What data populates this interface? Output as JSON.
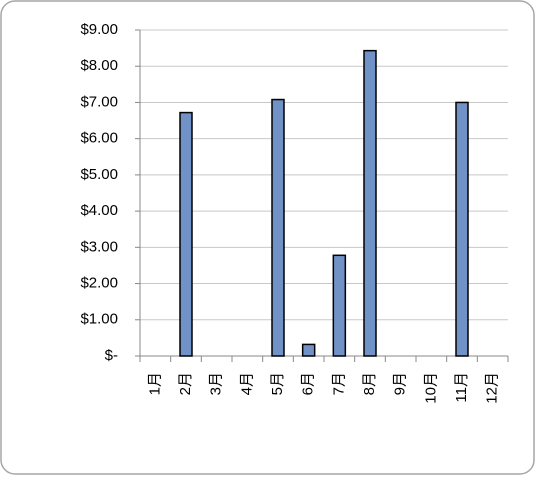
{
  "chart_data": {
    "type": "bar",
    "categories": [
      "1月",
      "2月",
      "3月",
      "4月",
      "5月",
      "6月",
      "7月",
      "8月",
      "9月",
      "10月",
      "11月",
      "12月"
    ],
    "values": [
      0,
      6.72,
      0,
      0,
      7.08,
      0.32,
      2.78,
      8.43,
      0,
      0,
      7.0,
      0
    ],
    "color": "#7092c6",
    "ylim": [
      0,
      9
    ],
    "yticks": [
      {
        "value": 0,
        "label": "$-"
      },
      {
        "value": 1,
        "label": "$1.00"
      },
      {
        "value": 2,
        "label": "$2.00"
      },
      {
        "value": 3,
        "label": "$3.00"
      },
      {
        "value": 4,
        "label": "$4.00"
      },
      {
        "value": 5,
        "label": "$5.00"
      },
      {
        "value": 6,
        "label": "$6.00"
      },
      {
        "value": 7,
        "label": "$7.00"
      },
      {
        "value": 8,
        "label": "$8.00"
      },
      {
        "value": 9,
        "label": "$9.00"
      }
    ],
    "grid": true
  }
}
